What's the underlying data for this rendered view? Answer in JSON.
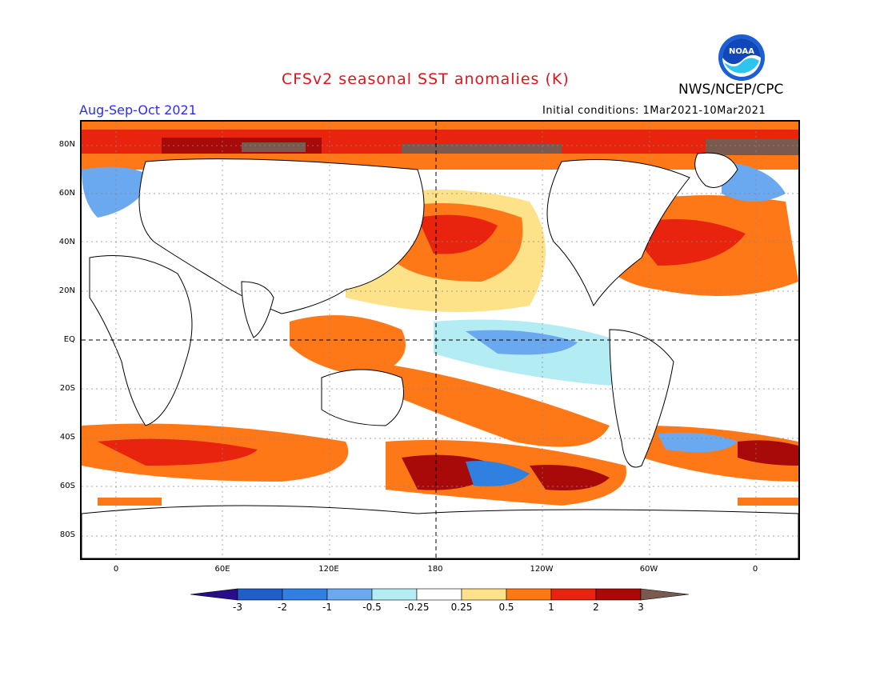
{
  "title": "CFSv2 seasonal SST anomalies (K)",
  "organization": "NWS/NCEP/CPC",
  "logo_text": "NOAA",
  "period": "Aug-Sep-Oct 2021",
  "initial_conditions": "Initial conditions: 1Mar2021-10Mar2021",
  "lat_labels": [
    "80N",
    "60N",
    "40N",
    "20N",
    "EQ",
    "20S",
    "40S",
    "60S",
    "80S"
  ],
  "lon_labels": [
    "0",
    "60E",
    "120E",
    "180",
    "120W",
    "60W",
    "0"
  ],
  "colorbar": {
    "labels": [
      "-3",
      "-2",
      "-1",
      "-0.5",
      "-0.25",
      "0.25",
      "0.5",
      "1",
      "2",
      "3"
    ],
    "colors": [
      "#2a0d8c",
      "#1e5fc8",
      "#2f80e0",
      "#6aa8f0",
      "#b4ecf4",
      "#ffffff",
      "#fde28a",
      "#ff7818",
      "#e8240e",
      "#a80a0a",
      "#7a5a4e"
    ]
  },
  "map_colors": {
    "land": "#ffffff",
    "coast": "#000000"
  }
}
